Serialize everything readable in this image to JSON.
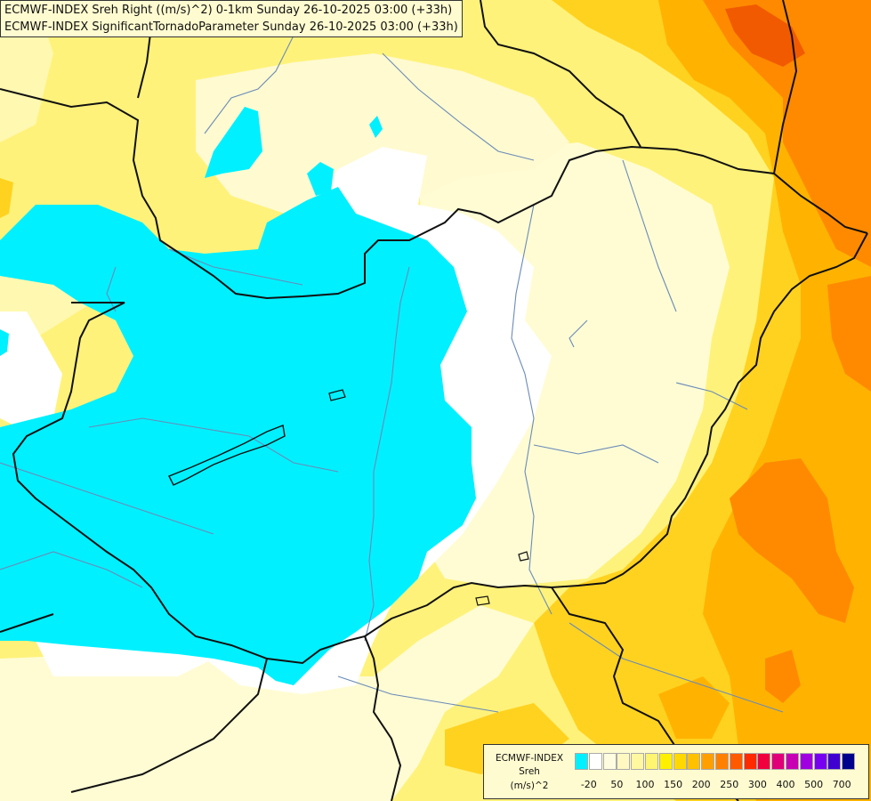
{
  "titles": {
    "line1": "ECMWF-INDEX Sreh Right ((m/s)^2) 0-1km Sunday 26-10-2025 03:00 (+33h)",
    "line2": "ECMWF-INDEX SignificantTornadoParameter Sunday 26-10-2025 03:00 (+33h)"
  },
  "legend": {
    "line1": "ECMWF-INDEX",
    "line2": "Sreh",
    "line3": "(m/s)^2",
    "swatches": [
      "#00f0ff",
      "#ffffff",
      "#fffce0",
      "#fff8c0",
      "#fff8a0",
      "#fff570",
      "#fff000",
      "#ffd800",
      "#ffc000",
      "#ffa000",
      "#ff8000",
      "#ff5a00",
      "#ff2a00",
      "#f0003c",
      "#e00078",
      "#c800b4",
      "#a000e0",
      "#7800f0",
      "#4000d0",
      "#00008c"
    ],
    "ticks": [
      "-20",
      "50",
      "100",
      "150",
      "200",
      "250",
      "300",
      "400",
      "500",
      "700"
    ]
  },
  "colors": {
    "cyan": "#00f0ff",
    "white": "#ffffff",
    "light": "#fffcd8",
    "yellow": "#fff27a",
    "gold": "#ffd21f",
    "orange": "#ffb300",
    "deep_orange": "#ff8a00",
    "red_orange": "#f25a00",
    "border": "#111111",
    "river": "#6a8bb8"
  }
}
